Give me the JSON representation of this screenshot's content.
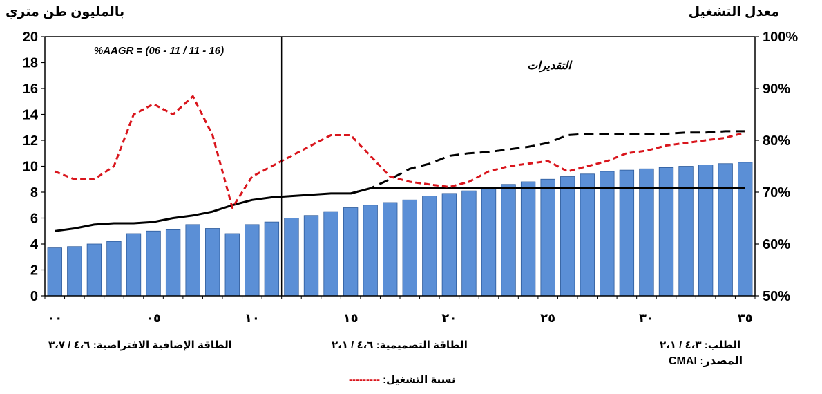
{
  "chart_data": {
    "type": "bar",
    "left_axis_title": "بالمليون طن متري",
    "right_axis_title": "معدل التشغيل",
    "annotation_aagr": "%AAGR = (06 - 11 / 11 - 16)",
    "annotation_forecast": "التقديرات",
    "ylim": [
      0,
      20
    ],
    "y_ticks": [
      "0",
      "2",
      "4",
      "6",
      "8",
      "10",
      "12",
      "14",
      "16",
      "18",
      "20"
    ],
    "y2lim": [
      50,
      100
    ],
    "y2_ticks": [
      "50%",
      "60%",
      "70%",
      "80%",
      "90%",
      "100%"
    ],
    "x_tick_labels": [
      "٠٠",
      "٠٥",
      "١٠",
      "١٥",
      "٢٠",
      "٢٥",
      "٣٠",
      "٣٥"
    ],
    "x_tick_years": [
      2000,
      2005,
      2010,
      2015,
      2020,
      2025,
      2030,
      2035
    ],
    "years": [
      2000,
      2001,
      2002,
      2003,
      2004,
      2005,
      2006,
      2007,
      2008,
      2009,
      2010,
      2011,
      2012,
      2013,
      2014,
      2015,
      2016,
      2017,
      2018,
      2019,
      2020,
      2021,
      2022,
      2023,
      2024,
      2025,
      2026,
      2027,
      2028,
      2029,
      2030,
      2031,
      2032,
      2033,
      2034,
      2035
    ],
    "forecast_start_year": 2011.5,
    "series": [
      {
        "kind": "bar",
        "axis": "left",
        "color": "#5b8fd6",
        "values": [
          3.7,
          3.8,
          4.0,
          4.2,
          4.8,
          5.0,
          5.1,
          5.5,
          5.2,
          4.8,
          5.5,
          5.7,
          6.0,
          6.2,
          6.5,
          6.8,
          7.0,
          7.2,
          7.4,
          7.7,
          7.9,
          8.1,
          8.4,
          8.6,
          8.8,
          9.0,
          9.2,
          9.4,
          9.6,
          9.7,
          9.8,
          9.9,
          10.0,
          10.1,
          10.2,
          10.3
        ]
      },
      {
        "kind": "line",
        "axis": "left",
        "style": "solid",
        "color": "#000000",
        "values": [
          5.0,
          5.2,
          5.5,
          5.6,
          5.6,
          5.7,
          6.0,
          6.2,
          6.5,
          7.0,
          7.4,
          7.6,
          7.7,
          7.8,
          7.9,
          7.9,
          8.3,
          8.3,
          8.3,
          8.3,
          8.3,
          8.3,
          8.3,
          8.3,
          8.3,
          8.3,
          8.3,
          8.3,
          8.3,
          8.3,
          8.3,
          8.3,
          8.3,
          8.3,
          8.3,
          8.3
        ]
      },
      {
        "kind": "line",
        "axis": "left",
        "style": "dashed",
        "color": "#000000",
        "values": [
          null,
          null,
          null,
          null,
          null,
          null,
          null,
          null,
          null,
          null,
          null,
          null,
          null,
          null,
          null,
          7.9,
          8.3,
          9.0,
          9.8,
          10.2,
          10.8,
          11.0,
          11.1,
          11.3,
          11.5,
          11.8,
          12.4,
          12.5,
          12.5,
          12.5,
          12.5,
          12.5,
          12.6,
          12.6,
          12.7,
          12.7
        ]
      },
      {
        "kind": "line",
        "axis": "right",
        "style": "dashed",
        "color": "#d9151c",
        "values": [
          74,
          72.5,
          72.5,
          75,
          85,
          87,
          85,
          88.5,
          81,
          67,
          73,
          75,
          77,
          79,
          81,
          81,
          77,
          73,
          72,
          71.5,
          71,
          72,
          74,
          75,
          75.5,
          76,
          74,
          75,
          76,
          77.5,
          78,
          79,
          79.5,
          80,
          80.5,
          81.5
        ]
      }
    ],
    "footer": {
      "demand": "الطلب: ٤،٣ / ٢،١",
      "nameplate": "الطاقة التصميمية: ٤،٦ / ٢،١",
      "additional": "الطاقة الإضافية الافتراضية: ٤،٦ / ٣،٧",
      "source_label": "المصدر:",
      "source_value": "CMAI",
      "legend_label": "نسبة التشغيل:",
      "legend_dash": "---------"
    }
  }
}
